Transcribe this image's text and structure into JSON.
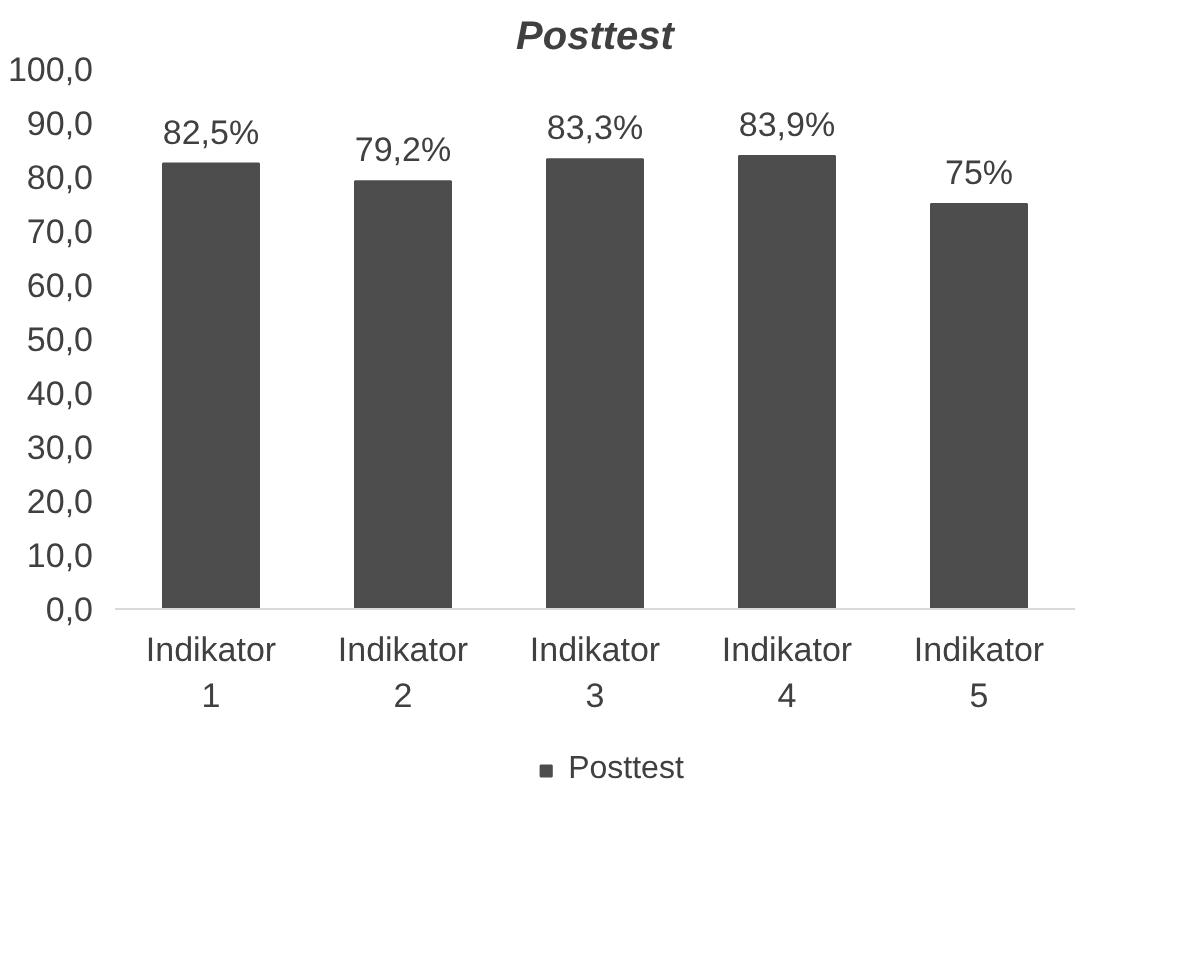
{
  "chart_data": {
    "type": "bar",
    "title": "Posttest",
    "categories": [
      "Indikator 1",
      "Indikator 2",
      "Indikator 3",
      "Indikator 4",
      "Indikator 5"
    ],
    "series": [
      {
        "name": "Posttest",
        "color": "#4d4d4d",
        "values": [
          82.5,
          79.2,
          83.3,
          83.9,
          75
        ]
      }
    ],
    "value_labels": [
      "82,5%",
      "79,2%",
      "83,3%",
      "83,9%",
      "75%"
    ],
    "ylim": [
      0,
      100
    ],
    "yticks": [
      {
        "value": 0,
        "label": "0,0"
      },
      {
        "value": 10,
        "label": "10,0"
      },
      {
        "value": 20,
        "label": "20,0"
      },
      {
        "value": 30,
        "label": "30,0"
      },
      {
        "value": 40,
        "label": "40,0"
      },
      {
        "value": 50,
        "label": "50,0"
      },
      {
        "value": 60,
        "label": "60,0"
      },
      {
        "value": 70,
        "label": "70,0"
      },
      {
        "value": 80,
        "label": "80,0"
      },
      {
        "value": 90,
        "label": "90,0"
      },
      {
        "value": 100,
        "label": "100,0"
      }
    ],
    "grid": false,
    "legend": "bottom"
  }
}
